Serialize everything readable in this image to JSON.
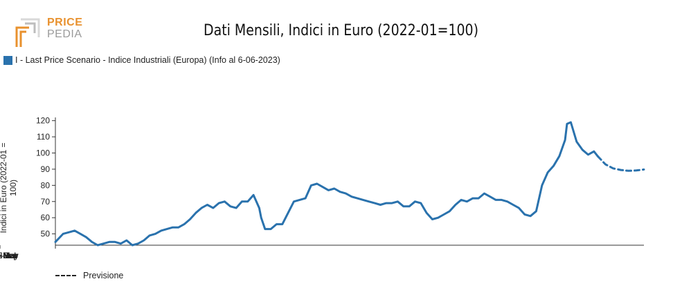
{
  "logo": {
    "word1": "PRICE",
    "word2": "PEDIA",
    "accent": "#e8912e",
    "gray": "#9a9a9a"
  },
  "chart_data": {
    "type": "line",
    "title": "Dati Mensili, Indici in Euro (2022-01=100)",
    "ylabel": "Indici in Euro (2022-01 = 100)",
    "xlabel": "",
    "x_ticks": [
      "2002-Sep",
      "2005-Jul",
      "2008-May",
      "2011-Mar",
      "2014-Jan",
      "2016-Nov",
      "2019-Sep",
      "2022-Jul",
      "2025-May"
    ],
    "y_ticks": [
      50,
      60,
      70,
      80,
      90,
      100,
      110,
      120
    ],
    "xlim": [
      "1999-11",
      "2025-05"
    ],
    "ylim": [
      43,
      122
    ],
    "grid": false,
    "series": [
      {
        "name": "I - Last Price Scenario - Indice Industriali (Europa) (Info al 6-06-2023)",
        "color": "#2a72ad",
        "style": "solid",
        "x": [
          "1999-11",
          "2000-03",
          "2000-06",
          "2000-09",
          "2000-12",
          "2001-03",
          "2001-06",
          "2001-09",
          "2001-12",
          "2002-03",
          "2002-06",
          "2002-09",
          "2002-12",
          "2003-03",
          "2003-06",
          "2003-09",
          "2003-12",
          "2004-03",
          "2004-06",
          "2004-09",
          "2004-12",
          "2005-03",
          "2005-06",
          "2005-09",
          "2005-12",
          "2006-03",
          "2006-06",
          "2006-09",
          "2006-12",
          "2007-03",
          "2007-06",
          "2007-09",
          "2007-12",
          "2008-03",
          "2008-06",
          "2008-09",
          "2008-10",
          "2008-12",
          "2009-03",
          "2009-06",
          "2009-09",
          "2009-12",
          "2010-03",
          "2010-06",
          "2010-09",
          "2010-12",
          "2011-03",
          "2011-06",
          "2011-09",
          "2011-12",
          "2012-03",
          "2012-06",
          "2012-09",
          "2012-12",
          "2013-03",
          "2013-06",
          "2013-09",
          "2013-12",
          "2014-03",
          "2014-06",
          "2014-09",
          "2014-12",
          "2015-03",
          "2015-06",
          "2015-09",
          "2015-12",
          "2016-03",
          "2016-06",
          "2016-09",
          "2016-12",
          "2017-03",
          "2017-06",
          "2017-09",
          "2017-12",
          "2018-03",
          "2018-06",
          "2018-09",
          "2018-12",
          "2019-03",
          "2019-06",
          "2019-09",
          "2019-12",
          "2020-03",
          "2020-06",
          "2020-09",
          "2020-12",
          "2021-03",
          "2021-06",
          "2021-09",
          "2021-12",
          "2022-01",
          "2022-03",
          "2022-06",
          "2022-09",
          "2022-12",
          "2023-03",
          "2023-05"
        ],
        "values": [
          45,
          50,
          51,
          52,
          50,
          48,
          45,
          43,
          44,
          45,
          45,
          44,
          46,
          43,
          44,
          46,
          49,
          50,
          52,
          53,
          54,
          54,
          56,
          59,
          63,
          66,
          68,
          66,
          69,
          70,
          67,
          66,
          70,
          70,
          74,
          66,
          60,
          53,
          53,
          56,
          56,
          63,
          70,
          71,
          72,
          80,
          81,
          79,
          77,
          78,
          76,
          75,
          73,
          72,
          71,
          70,
          69,
          68,
          69,
          69,
          70,
          67,
          67,
          70,
          69,
          63,
          59,
          60,
          62,
          64,
          68,
          71,
          70,
          72,
          72,
          75,
          73,
          71,
          71,
          70,
          68,
          66,
          62,
          61,
          64,
          80,
          88,
          92,
          98,
          108,
          118,
          119,
          107,
          102,
          99,
          101,
          98
        ]
      },
      {
        "name": "Previsione",
        "color": "#2a72ad",
        "style": "dashed",
        "x": [
          "2023-05",
          "2023-09",
          "2024-01",
          "2024-05",
          "2024-09",
          "2025-01",
          "2025-05"
        ],
        "values": [
          98,
          93,
          90.5,
          89.5,
          89,
          89.2,
          89.8
        ]
      }
    ],
    "legend": {
      "top": "I - Last Price Scenario - Indice Industriali (Europa) (Info al 6-06-2023)",
      "bottom": "Previsione"
    }
  }
}
